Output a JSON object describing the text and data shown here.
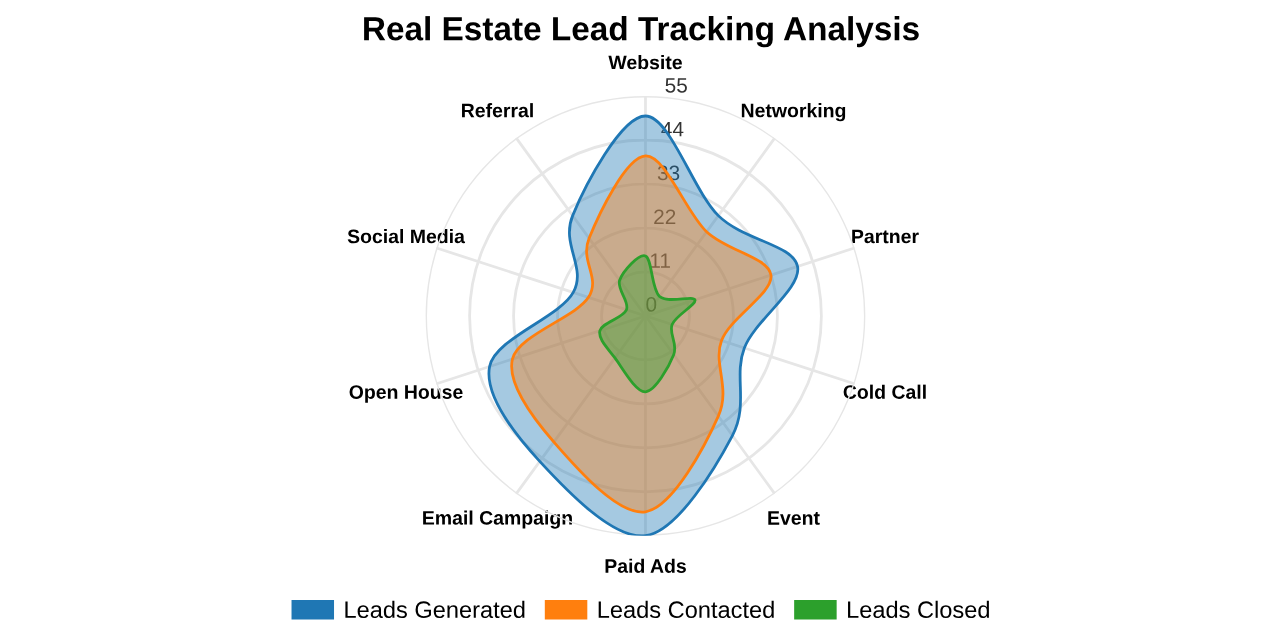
{
  "chart_data": {
    "type": "radar",
    "title": "Real Estate Lead Tracking Analysis",
    "categories": [
      "Website",
      "Networking",
      "Partner",
      "Cold Call",
      "Event",
      "Paid Ads",
      "Email Campaign",
      "Open House",
      "Social Media",
      "Referral"
    ],
    "series": [
      {
        "name": "Leads Generated",
        "color": "#1f77b4",
        "values": [
          50,
          31,
          40,
          26,
          37,
          55,
          45,
          41,
          19,
          31
        ]
      },
      {
        "name": "Leads Contacted",
        "color": "#ff7f0e",
        "values": [
          40,
          26,
          33,
          20,
          31,
          49,
          39,
          35,
          15,
          24
        ]
      },
      {
        "name": "Leads Closed",
        "color": "#2ca02c",
        "values": [
          15,
          6,
          13,
          7,
          12,
          19,
          13,
          12,
          5,
          11
        ]
      }
    ],
    "ylim": [
      0,
      55
    ],
    "yticks": [
      0,
      11,
      22,
      33,
      44,
      55
    ],
    "grid": true,
    "legend": "bottom",
    "line_style": "solid"
  }
}
